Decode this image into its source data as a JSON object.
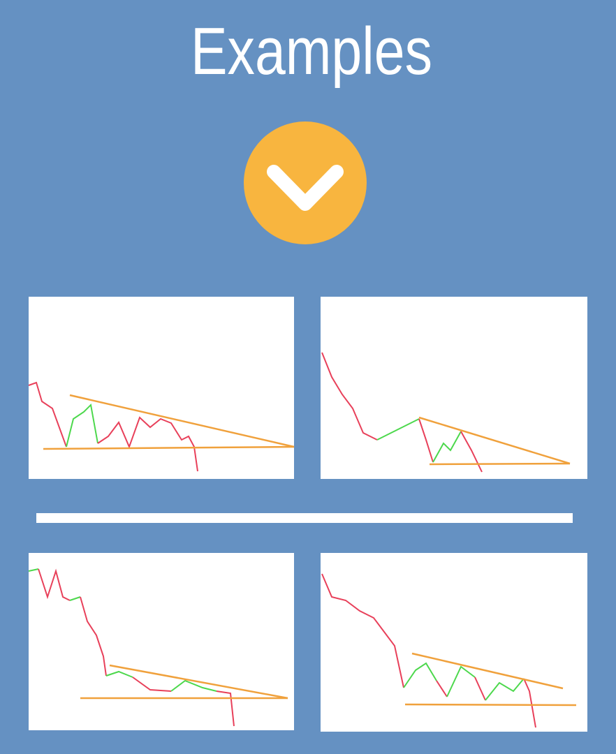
{
  "title": "Examples"
}
